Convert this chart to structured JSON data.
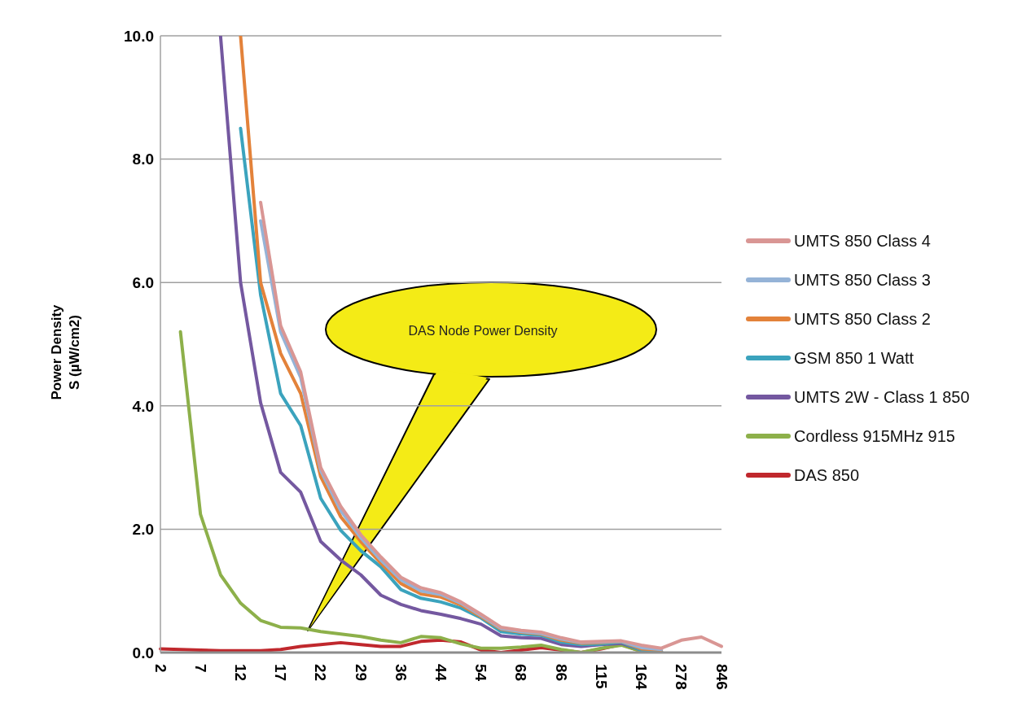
{
  "chart_data": {
    "type": "line",
    "ylabel": "Power Density\nS (µW/cm2)",
    "categories": [
      "2",
      null,
      "7",
      null,
      "12",
      null,
      "17",
      null,
      "22",
      null,
      "29",
      null,
      "36",
      null,
      "44",
      null,
      "54",
      null,
      "68",
      null,
      "86",
      null,
      "115",
      null,
      "164",
      null,
      "278",
      null,
      "846"
    ],
    "series": [
      {
        "name": "UMTS 850 Class 4",
        "color": "#d99694",
        "values": [
          null,
          null,
          null,
          null,
          null,
          7.3,
          5.3,
          4.55,
          3.0,
          2.37,
          1.91,
          1.55,
          1.22,
          1.05,
          0.97,
          0.82,
          0.62,
          0.41,
          0.36,
          0.33,
          0.24,
          0.17,
          0.18,
          0.19,
          0.12,
          0.07,
          0.2,
          0.25,
          0.1
        ]
      },
      {
        "name": "UMTS 850 Class 3",
        "color": "#95b3d7",
        "values": [
          null,
          null,
          null,
          null,
          null,
          7.0,
          5.2,
          4.46,
          2.95,
          2.3,
          1.86,
          1.5,
          1.18,
          1.0,
          0.94,
          0.8,
          0.6,
          0.39,
          0.34,
          0.31,
          0.22,
          0.16,
          0.17,
          0.18,
          0.08,
          0.05,
          null,
          null,
          null
        ]
      },
      {
        "name": "UMTS 850 Class 2",
        "color": "#e3823a",
        "values": [
          null,
          null,
          null,
          null,
          10.0,
          6.0,
          4.85,
          4.2,
          2.85,
          2.2,
          1.8,
          1.45,
          1.12,
          0.95,
          0.9,
          0.77,
          0.58,
          0.38,
          0.33,
          0.3,
          0.2,
          0.15,
          0.16,
          0.18,
          0.06,
          0.04,
          null,
          null,
          null
        ]
      },
      {
        "name": "GSM 850 1 Watt",
        "color": "#3ba3bd",
        "values": [
          null,
          null,
          null,
          null,
          8.5,
          5.8,
          4.2,
          3.68,
          2.5,
          1.98,
          1.65,
          1.39,
          1.02,
          0.88,
          0.82,
          0.72,
          0.56,
          0.34,
          0.3,
          0.28,
          0.17,
          0.13,
          0.14,
          0.17,
          0.04,
          0.02,
          null,
          null,
          null
        ]
      },
      {
        "name": "UMTS 2W - Class 1 850",
        "color": "#7458a0",
        "values": [
          null,
          null,
          null,
          10.0,
          6.0,
          4.05,
          2.92,
          2.6,
          1.8,
          1.5,
          1.26,
          0.93,
          0.78,
          0.68,
          0.62,
          0.55,
          0.46,
          0.27,
          0.24,
          0.23,
          0.13,
          0.1,
          0.13,
          0.15,
          0.04,
          0.02,
          null,
          null,
          null
        ]
      },
      {
        "name": "Cordless 915MHz 915",
        "color": "#8db04a",
        "values": [
          null,
          5.2,
          2.24,
          1.26,
          0.8,
          0.52,
          0.41,
          0.4,
          0.34,
          0.3,
          0.26,
          0.2,
          0.16,
          0.26,
          0.24,
          0.14,
          0.07,
          0.07,
          0.09,
          0.12,
          0.05,
          0.0,
          0.07,
          0.12,
          0.02,
          0.02,
          null,
          null,
          null
        ]
      },
      {
        "name": "DAS 850",
        "color": "#c0282d",
        "values": [
          0.06,
          0.05,
          0.04,
          0.03,
          0.03,
          0.03,
          0.05,
          0.1,
          0.13,
          0.16,
          0.13,
          0.1,
          0.1,
          0.18,
          0.2,
          0.17,
          0.04,
          0.0,
          0.04,
          0.08,
          0.04,
          0.0,
          0.06,
          0.13,
          0.02,
          0.02,
          null,
          null,
          null
        ]
      }
    ],
    "ylim": [
      0,
      10
    ],
    "yticks": [
      {
        "value": 0,
        "label": "0.0"
      },
      {
        "value": 2,
        "label": "2.0"
      },
      {
        "value": 4,
        "label": "4.0"
      },
      {
        "value": 6,
        "label": "6.0"
      },
      {
        "value": 8,
        "label": "8.0"
      },
      {
        "value": 10,
        "label": "10.0"
      }
    ],
    "grid": "y",
    "legend": "right",
    "marker": "none",
    "line_style": "solid",
    "annotations": [
      "DAS Node Power Density"
    ]
  }
}
